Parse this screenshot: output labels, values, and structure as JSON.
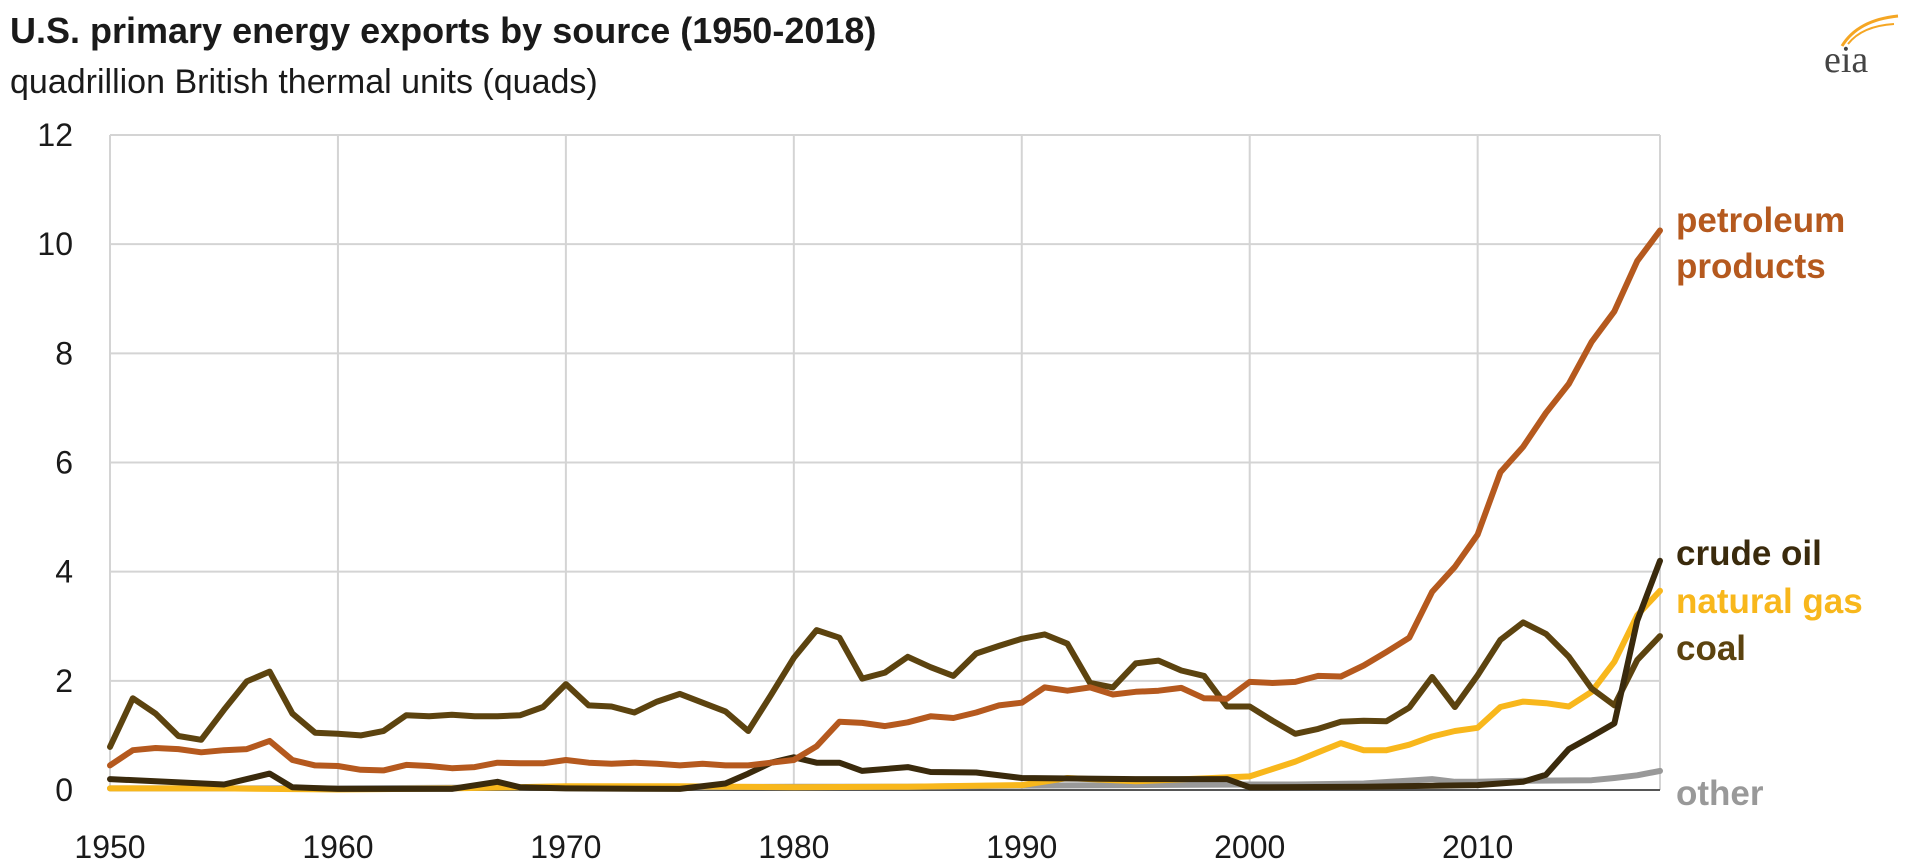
{
  "title": "U.S. primary energy exports by source (1950-2018)",
  "subtitle": "quadrillion British thermal units (quads)",
  "logo_text": "eia",
  "chart_data": {
    "type": "line",
    "title": "U.S. primary energy exports by source (1950-2018)",
    "ylabel": "quadrillion British thermal units (quads)",
    "xlim": [
      1950,
      2018
    ],
    "ylim": [
      0,
      12
    ],
    "x_ticks": [
      "1950",
      "1960",
      "1970",
      "1980",
      "1990",
      "2000",
      "2010"
    ],
    "y_ticks": [
      "0",
      "2",
      "4",
      "6",
      "8",
      "10",
      "12"
    ],
    "grid": true,
    "legend": "right-side direct labels",
    "series": [
      {
        "key": "other",
        "name": "other",
        "label_lines": [
          "other"
        ],
        "color": "#999999",
        "x": [
          1950,
          1955,
          1960,
          1965,
          1970,
          1975,
          1980,
          1985,
          1990,
          1995,
          2000,
          2002,
          2005,
          2008,
          2009,
          2010,
          2012,
          2015,
          2016,
          2017,
          2018
        ],
        "y": [
          0.03,
          0.03,
          0.03,
          0.04,
          0.05,
          0.05,
          0.06,
          0.06,
          0.08,
          0.09,
          0.1,
          0.1,
          0.12,
          0.2,
          0.15,
          0.15,
          0.17,
          0.18,
          0.22,
          0.27,
          0.35
        ]
      },
      {
        "key": "natural_gas",
        "name": "natural gas",
        "label_lines": [
          "natural gas"
        ],
        "color": "#f8b71c",
        "x": [
          1950,
          1955,
          1960,
          1965,
          1970,
          1975,
          1980,
          1985,
          1990,
          1992,
          1995,
          2000,
          2002,
          2003,
          2004,
          2005,
          2006,
          2007,
          2008,
          2009,
          2010,
          2011,
          2012,
          2013,
          2014,
          2015,
          2016,
          2017,
          2018
        ],
        "y": [
          0.03,
          0.03,
          0.01,
          0.03,
          0.07,
          0.07,
          0.05,
          0.06,
          0.09,
          0.22,
          0.16,
          0.25,
          0.52,
          0.69,
          0.86,
          0.73,
          0.73,
          0.83,
          0.98,
          1.08,
          1.14,
          1.52,
          1.62,
          1.59,
          1.53,
          1.8,
          2.35,
          3.2,
          3.65
        ]
      },
      {
        "key": "coal",
        "name": "coal",
        "label_lines": [
          "coal"
        ],
        "color": "#5c430f",
        "x": [
          1950,
          1951,
          1952,
          1953,
          1954,
          1955,
          1956,
          1957,
          1958,
          1959,
          1960,
          1961,
          1962,
          1963,
          1964,
          1965,
          1966,
          1967,
          1968,
          1969,
          1970,
          1971,
          1972,
          1973,
          1974,
          1975,
          1976,
          1977,
          1978,
          1979,
          1980,
          1981,
          1982,
          1983,
          1984,
          1985,
          1986,
          1987,
          1988,
          1989,
          1990,
          1991,
          1992,
          1993,
          1994,
          1995,
          1996,
          1997,
          1998,
          1999,
          2000,
          2001,
          2002,
          2003,
          2004,
          2005,
          2006,
          2007,
          2008,
          2009,
          2010,
          2011,
          2012,
          2013,
          2014,
          2015,
          2016,
          2017,
          2018
        ],
        "y": [
          0.79,
          1.68,
          1.4,
          0.99,
          0.92,
          1.47,
          1.99,
          2.17,
          1.4,
          1.05,
          1.03,
          1.0,
          1.08,
          1.37,
          1.35,
          1.38,
          1.35,
          1.35,
          1.37,
          1.52,
          1.94,
          1.55,
          1.53,
          1.42,
          1.62,
          1.76,
          1.6,
          1.44,
          1.08,
          1.74,
          2.42,
          2.93,
          2.79,
          2.04,
          2.15,
          2.44,
          2.25,
          2.09,
          2.5,
          2.64,
          2.77,
          2.85,
          2.68,
          1.96,
          1.88,
          2.32,
          2.37,
          2.19,
          2.09,
          1.53,
          1.53,
          1.27,
          1.03,
          1.12,
          1.25,
          1.27,
          1.26,
          1.51,
          2.07,
          1.52,
          2.1,
          2.75,
          3.07,
          2.86,
          2.44,
          1.86,
          1.55,
          2.38,
          2.82
        ]
      },
      {
        "key": "crude_oil",
        "name": "crude oil",
        "label_lines": [
          "crude oil"
        ],
        "color": "#3a2a0c",
        "x": [
          1950,
          1955,
          1956,
          1957,
          1958,
          1960,
          1965,
          1967,
          1968,
          1970,
          1975,
          1977,
          1978,
          1979,
          1980,
          1981,
          1982,
          1983,
          1985,
          1986,
          1988,
          1990,
          1995,
          1999,
          2000,
          2005,
          2010,
          2012,
          2013,
          2014,
          2015,
          2016,
          2017,
          2018
        ],
        "y": [
          0.2,
          0.1,
          0.2,
          0.3,
          0.05,
          0.02,
          0.02,
          0.15,
          0.05,
          0.03,
          0.02,
          0.12,
          0.3,
          0.5,
          0.6,
          0.5,
          0.5,
          0.35,
          0.42,
          0.33,
          0.32,
          0.22,
          0.2,
          0.2,
          0.05,
          0.06,
          0.09,
          0.15,
          0.28,
          0.75,
          0.98,
          1.22,
          3.1,
          4.2
        ]
      },
      {
        "key": "petroleum_products",
        "name": "petroleum products",
        "label_lines": [
          "petroleum",
          "products"
        ],
        "color": "#b5591e",
        "x": [
          1950,
          1951,
          1952,
          1953,
          1954,
          1955,
          1956,
          1957,
          1958,
          1959,
          1960,
          1961,
          1962,
          1963,
          1964,
          1965,
          1966,
          1967,
          1968,
          1969,
          1970,
          1971,
          1972,
          1973,
          1974,
          1975,
          1976,
          1977,
          1978,
          1979,
          1980,
          1981,
          1982,
          1983,
          1984,
          1985,
          1986,
          1987,
          1988,
          1989,
          1990,
          1991,
          1992,
          1993,
          1994,
          1995,
          1996,
          1997,
          1998,
          1999,
          2000,
          2001,
          2002,
          2003,
          2004,
          2005,
          2006,
          2007,
          2008,
          2009,
          2010,
          2011,
          2012,
          2013,
          2014,
          2015,
          2016,
          2017,
          2018
        ],
        "y": [
          0.45,
          0.73,
          0.77,
          0.75,
          0.69,
          0.73,
          0.75,
          0.9,
          0.55,
          0.45,
          0.44,
          0.37,
          0.36,
          0.46,
          0.44,
          0.4,
          0.42,
          0.5,
          0.49,
          0.49,
          0.55,
          0.5,
          0.48,
          0.5,
          0.48,
          0.45,
          0.48,
          0.45,
          0.45,
          0.5,
          0.55,
          0.8,
          1.25,
          1.23,
          1.17,
          1.24,
          1.35,
          1.32,
          1.42,
          1.55,
          1.6,
          1.88,
          1.82,
          1.88,
          1.75,
          1.8,
          1.82,
          1.87,
          1.68,
          1.67,
          1.98,
          1.96,
          1.98,
          2.09,
          2.08,
          2.28,
          2.53,
          2.79,
          3.63,
          4.09,
          4.68,
          5.82,
          6.29,
          6.91,
          7.44,
          8.21,
          8.77,
          9.69,
          10.25
        ]
      }
    ]
  }
}
